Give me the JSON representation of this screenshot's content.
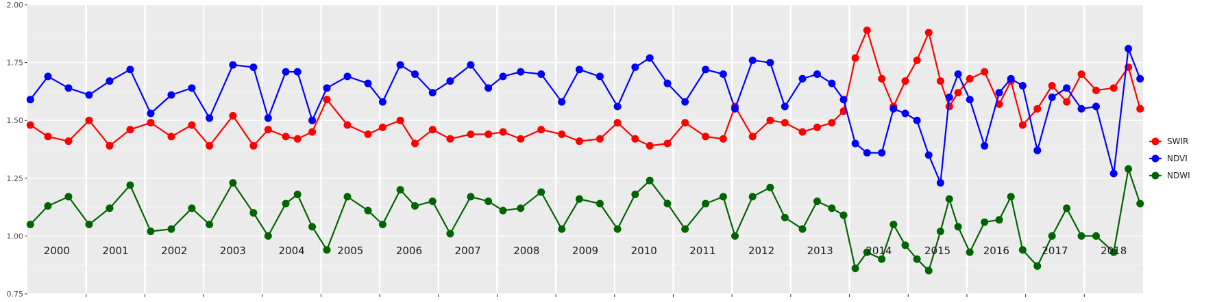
{
  "chart_data": {
    "type": "line",
    "title": "",
    "xlabel": "",
    "ylabel": "",
    "x_domain": [
      2000.0,
      2019.0
    ],
    "ylim": [
      0.75,
      2.0
    ],
    "y_ticks": [
      0.75,
      1.0,
      1.25,
      1.5,
      1.75,
      2.0
    ],
    "y_tick_labels": [
      "0.75",
      "1.00",
      "1.25",
      "1.50",
      "1.75",
      "2.00"
    ],
    "year_labels": [
      "2000",
      "2001",
      "2002",
      "2003",
      "2004",
      "2005",
      "2006",
      "2007",
      "2008",
      "2009",
      "2010",
      "2011",
      "2012",
      "2013",
      "2014",
      "2015",
      "2016",
      "2017",
      "2018"
    ],
    "grid": true,
    "background": "#ebebeb",
    "legend_position": "right",
    "series": [
      {
        "name": "SWIR",
        "color": "#ff0000",
        "x": [
          2000.05,
          2000.35,
          2000.7,
          2001.05,
          2001.4,
          2001.75,
          2002.1,
          2002.45,
          2002.8,
          2003.1,
          2003.5,
          2003.85,
          2004.1,
          2004.4,
          2004.6,
          2004.85,
          2005.1,
          2005.45,
          2005.8,
          2006.05,
          2006.35,
          2006.6,
          2006.9,
          2007.2,
          2007.55,
          2007.85,
          2008.1,
          2008.4,
          2008.75,
          2009.1,
          2009.4,
          2009.75,
          2010.05,
          2010.35,
          2010.6,
          2010.9,
          2011.2,
          2011.55,
          2011.85,
          2012.05,
          2012.35,
          2012.65,
          2012.9,
          2013.2,
          2013.45,
          2013.7,
          2013.9,
          2014.1,
          2014.3,
          2014.55,
          2014.75,
          2014.95,
          2015.15,
          2015.35,
          2015.55,
          2015.7,
          2015.85,
          2016.05,
          2016.3,
          2016.55,
          2016.75,
          2016.95,
          2017.2,
          2017.45,
          2017.7,
          2017.95,
          2018.2,
          2018.5,
          2018.75,
          2018.95
        ],
        "values": [
          1.48,
          1.43,
          1.41,
          1.5,
          1.39,
          1.46,
          1.49,
          1.43,
          1.48,
          1.39,
          1.52,
          1.39,
          1.46,
          1.43,
          1.42,
          1.45,
          1.59,
          1.48,
          1.44,
          1.47,
          1.5,
          1.4,
          1.46,
          1.42,
          1.44,
          1.44,
          1.45,
          1.42,
          1.46,
          1.44,
          1.41,
          1.42,
          1.49,
          1.42,
          1.39,
          1.4,
          1.49,
          1.43,
          1.42,
          1.56,
          1.43,
          1.5,
          1.49,
          1.45,
          1.47,
          1.49,
          1.54,
          1.77,
          1.89,
          1.68,
          1.56,
          1.67,
          1.76,
          1.88,
          1.67,
          1.56,
          1.62,
          1.68,
          1.71,
          1.57,
          1.67,
          1.48,
          1.55,
          1.65,
          1.58,
          1.7,
          1.63,
          1.64,
          1.73,
          1.55
        ]
      },
      {
        "name": "NDVI",
        "color": "#0000ff",
        "x": [
          2000.05,
          2000.35,
          2000.7,
          2001.05,
          2001.4,
          2001.75,
          2002.1,
          2002.45,
          2002.8,
          2003.1,
          2003.5,
          2003.85,
          2004.1,
          2004.4,
          2004.6,
          2004.85,
          2005.1,
          2005.45,
          2005.8,
          2006.05,
          2006.35,
          2006.6,
          2006.9,
          2007.2,
          2007.55,
          2007.85,
          2008.1,
          2008.4,
          2008.75,
          2009.1,
          2009.4,
          2009.75,
          2010.05,
          2010.35,
          2010.6,
          2010.9,
          2011.2,
          2011.55,
          2011.85,
          2012.05,
          2012.35,
          2012.65,
          2012.9,
          2013.2,
          2013.45,
          2013.7,
          2013.9,
          2014.1,
          2014.3,
          2014.55,
          2014.75,
          2014.95,
          2015.15,
          2015.35,
          2015.55,
          2015.7,
          2015.85,
          2016.05,
          2016.3,
          2016.55,
          2016.75,
          2016.95,
          2017.2,
          2017.45,
          2017.7,
          2017.95,
          2018.2,
          2018.5,
          2018.75,
          2018.95
        ],
        "values": [
          1.59,
          1.69,
          1.64,
          1.61,
          1.67,
          1.72,
          1.53,
          1.61,
          1.64,
          1.51,
          1.74,
          1.73,
          1.51,
          1.71,
          1.71,
          1.5,
          1.64,
          1.69,
          1.66,
          1.58,
          1.74,
          1.7,
          1.62,
          1.67,
          1.74,
          1.64,
          1.69,
          1.71,
          1.7,
          1.58,
          1.72,
          1.69,
          1.56,
          1.73,
          1.77,
          1.66,
          1.58,
          1.72,
          1.7,
          1.55,
          1.76,
          1.75,
          1.56,
          1.68,
          1.7,
          1.66,
          1.59,
          1.4,
          1.36,
          1.36,
          1.55,
          1.53,
          1.5,
          1.35,
          1.23,
          1.6,
          1.7,
          1.59,
          1.39,
          1.62,
          1.68,
          1.65,
          1.37,
          1.6,
          1.64,
          1.55,
          1.56,
          1.27,
          1.81,
          1.68
        ]
      },
      {
        "name": "NDWI",
        "color": "#006400",
        "x": [
          2000.05,
          2000.35,
          2000.7,
          2001.05,
          2001.4,
          2001.75,
          2002.1,
          2002.45,
          2002.8,
          2003.1,
          2003.5,
          2003.85,
          2004.1,
          2004.4,
          2004.6,
          2004.85,
          2005.1,
          2005.45,
          2005.8,
          2006.05,
          2006.35,
          2006.6,
          2006.9,
          2007.2,
          2007.55,
          2007.85,
          2008.1,
          2008.4,
          2008.75,
          2009.1,
          2009.4,
          2009.75,
          2010.05,
          2010.35,
          2010.6,
          2010.9,
          2011.2,
          2011.55,
          2011.85,
          2012.05,
          2012.35,
          2012.65,
          2012.9,
          2013.2,
          2013.45,
          2013.7,
          2013.9,
          2014.1,
          2014.3,
          2014.55,
          2014.75,
          2014.95,
          2015.15,
          2015.35,
          2015.55,
          2015.7,
          2015.85,
          2016.05,
          2016.3,
          2016.55,
          2016.75,
          2016.95,
          2017.2,
          2017.45,
          2017.7,
          2017.95,
          2018.2,
          2018.5,
          2018.75,
          2018.95
        ],
        "values": [
          1.05,
          1.13,
          1.17,
          1.05,
          1.12,
          1.22,
          1.02,
          1.03,
          1.12,
          1.05,
          1.23,
          1.1,
          1.0,
          1.14,
          1.18,
          1.04,
          0.94,
          1.17,
          1.11,
          1.05,
          1.2,
          1.13,
          1.15,
          1.01,
          1.17,
          1.15,
          1.11,
          1.12,
          1.19,
          1.03,
          1.16,
          1.14,
          1.03,
          1.18,
          1.24,
          1.14,
          1.03,
          1.14,
          1.17,
          1.0,
          1.17,
          1.21,
          1.08,
          1.03,
          1.15,
          1.12,
          1.09,
          0.86,
          0.93,
          0.9,
          1.05,
          0.96,
          0.9,
          0.85,
          1.02,
          1.16,
          1.04,
          0.93,
          1.06,
          1.07,
          1.17,
          0.94,
          0.87,
          1.0,
          1.12,
          1.0,
          1.0,
          0.93,
          1.29,
          1.14
        ]
      }
    ],
    "legend": [
      {
        "label": "SWIR",
        "color": "#ff0000"
      },
      {
        "label": "NDVI",
        "color": "#0000ff"
      },
      {
        "label": "NDWI",
        "color": "#006400"
      }
    ]
  }
}
